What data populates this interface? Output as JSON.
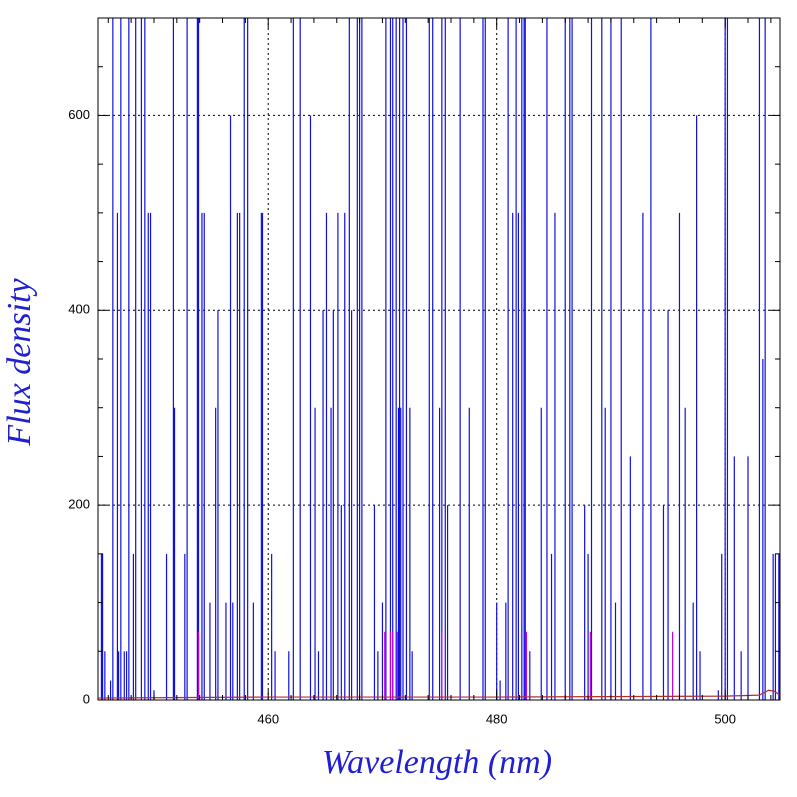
{
  "chart_data": {
    "type": "line",
    "xlabel": "Wavelength (nm)",
    "ylabel": "Flux density",
    "xlim": [
      445.1,
      504.8
    ],
    "ylim": [
      0,
      700
    ],
    "xticks": [
      460,
      480,
      500
    ],
    "yticks": [
      0,
      200,
      400,
      600
    ],
    "xminor": [
      446,
      448,
      450,
      452,
      454,
      456,
      458,
      462,
      464,
      466,
      468,
      470,
      472,
      474,
      476,
      478,
      482,
      484,
      486,
      488,
      490,
      492,
      494,
      496,
      498,
      502,
      504
    ],
    "yminor": [
      50,
      100,
      150,
      250,
      300,
      350,
      450,
      500,
      550,
      650
    ],
    "grid": true,
    "series": [
      {
        "kind": "spike",
        "color": "#1010e0",
        "x": [
          445.4,
          445.5,
          445.7,
          446.2,
          446.4,
          446.8,
          446.9,
          447.1,
          447.4,
          447.6,
          447.8,
          448.2,
          448.4,
          448.9,
          449.2,
          449.5,
          449.7,
          450.0,
          451.1,
          451.7,
          451.8,
          452.7,
          452.9,
          453.8,
          453.9,
          454.2,
          454.4,
          454.9,
          455.4,
          455.6,
          456.3,
          456.7,
          456.9,
          457.3,
          457.5,
          457.9,
          458.2,
          458.7,
          459.4,
          459.5,
          460.3,
          460.6,
          461.8,
          462.2,
          462.8,
          463.7,
          464.1,
          464.4,
          464.8,
          465.1,
          465.5,
          465.7,
          466.1,
          466.4,
          466.7,
          467.1,
          467.3,
          467.8,
          468.0,
          468.2,
          469.3,
          469.6,
          470.0,
          470.3,
          470.7,
          470.9,
          471.2,
          471.4,
          471.5,
          471.6,
          471.8,
          472.1,
          472.4,
          472.6,
          474.1,
          474.4,
          475.0,
          475.2,
          475.5,
          475.7,
          476.8,
          477.6,
          478.8,
          479.0,
          480.0,
          480.3,
          480.8,
          481.0,
          481.4,
          481.7,
          481.9,
          482.2,
          482.4,
          482.5,
          482.9,
          483.9,
          484.4,
          484.8,
          485.1,
          486.0,
          486.4,
          486.6,
          487.7,
          488.0,
          488.3,
          489.2,
          489.5,
          490.0,
          490.4,
          490.9,
          491.7,
          492.8,
          493.5,
          494.6,
          495.0,
          496.0,
          496.5,
          497.2,
          497.5,
          497.8,
          499.4,
          499.7,
          500.0,
          500.2,
          500.8,
          501.4,
          502.0,
          503.0,
          503.3,
          503.5,
          504.2,
          504.4,
          504.7
        ],
        "values": [
          150,
          150,
          50,
          20,
          700,
          500,
          50,
          700,
          50,
          50,
          700,
          150,
          700,
          700,
          700,
          500,
          500,
          10,
          150,
          700,
          300,
          150,
          700,
          700,
          700,
          500,
          500,
          100,
          300,
          400,
          100,
          600,
          100,
          500,
          500,
          700,
          700,
          100,
          500,
          500,
          150,
          50,
          50,
          700,
          700,
          600,
          300,
          50,
          400,
          500,
          300,
          400,
          500,
          200,
          500,
          700,
          400,
          700,
          700,
          700,
          200,
          50,
          100,
          700,
          700,
          700,
          700,
          300,
          700,
          300,
          700,
          700,
          300,
          50,
          700,
          700,
          300,
          700,
          700,
          200,
          700,
          300,
          700,
          700,
          100,
          20,
          100,
          700,
          500,
          700,
          500,
          700,
          700,
          700,
          50,
          300,
          700,
          150,
          500,
          700,
          700,
          700,
          200,
          150,
          700,
          700,
          300,
          700,
          100,
          700,
          250,
          500,
          700,
          200,
          400,
          500,
          300,
          100,
          600,
          50,
          10,
          150,
          700,
          700,
          250,
          50,
          250,
          700,
          350,
          700,
          150,
          150,
          150
        ]
      },
      {
        "kind": "spike",
        "color": "#c000e0",
        "x": [
          453.9,
          470.2,
          470.7,
          470.9,
          471.3,
          475.2,
          482.6,
          488.2,
          495.4
        ],
        "values": [
          70,
          70,
          70,
          70,
          70,
          70,
          70,
          70,
          70
        ]
      },
      {
        "kind": "line",
        "color": "#b03030",
        "x": [
          445.1,
          460,
          480,
          500,
          503,
          503.8,
          504.3,
          504.8
        ],
        "values": [
          2,
          3,
          3,
          4,
          5,
          10,
          9,
          5
        ]
      }
    ]
  }
}
